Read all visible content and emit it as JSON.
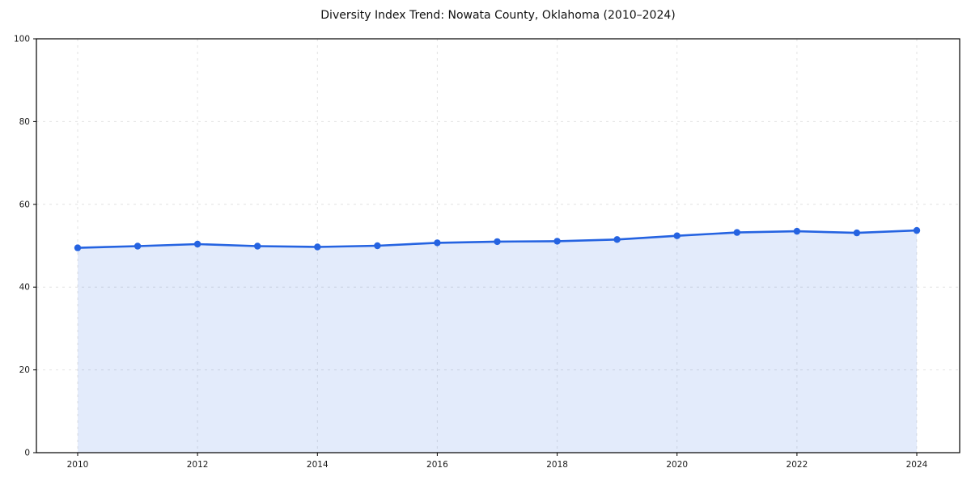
{
  "page": {
    "title": "Diversity Index Trend: Nowata County, Oklahoma (2010–2024)"
  },
  "chart_data": {
    "type": "line",
    "title": "Diversity Index Trend: Nowata County, Oklahoma (2010–2024)",
    "x": [
      2010,
      2011,
      2012,
      2013,
      2014,
      2015,
      2016,
      2017,
      2018,
      2019,
      2020,
      2021,
      2022,
      2023,
      2024
    ],
    "series": [
      {
        "name": "Diversity Index",
        "values": [
          49.5,
          49.9,
          50.4,
          49.9,
          49.7,
          50.0,
          50.7,
          51.0,
          51.1,
          51.5,
          52.4,
          53.2,
          53.5,
          53.1,
          53.7
        ]
      }
    ],
    "xlabel": "",
    "ylabel": "",
    "xticks": [
      2010,
      2012,
      2014,
      2016,
      2018,
      2020,
      2022,
      2024
    ],
    "yticks": [
      0,
      20,
      40,
      60,
      80,
      100
    ],
    "ylim": [
      0,
      100
    ],
    "grid": true,
    "grid_style": "dashed",
    "legend_position": "none",
    "line_color": "#2563e1",
    "marker_color": "#2563e1",
    "fill_color": "rgba(37, 99, 225, 0.13)",
    "border_color": "#000000",
    "marker": "circle"
  }
}
